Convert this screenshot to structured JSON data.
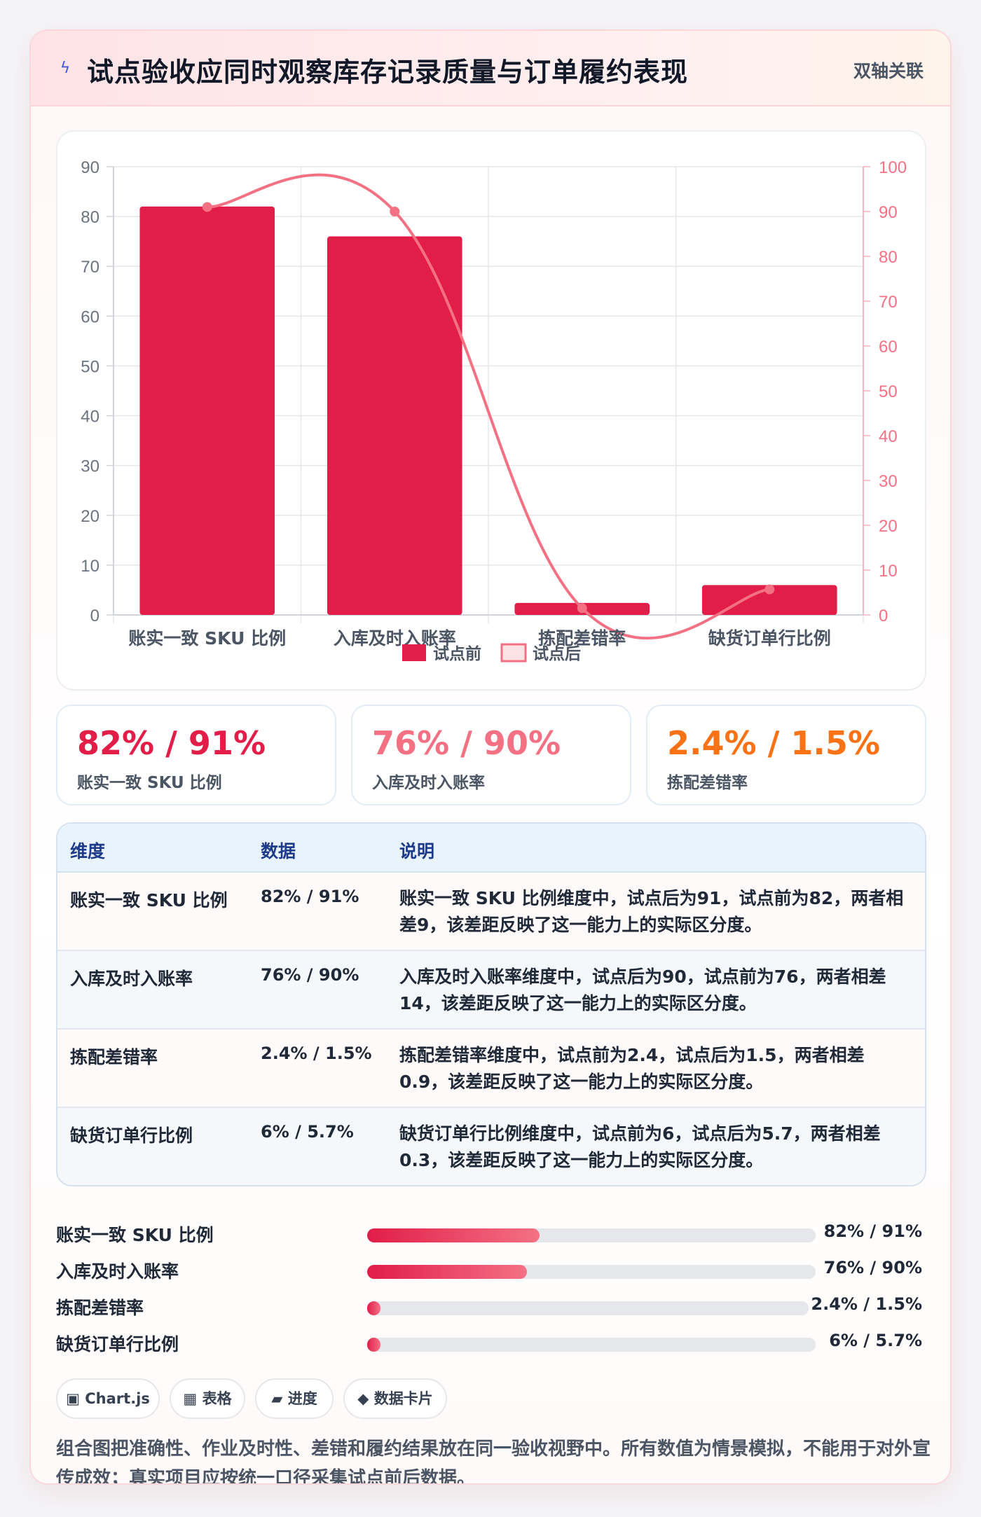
{
  "header": {
    "title": "试点验收应同时观察库存记录质量与订单履约表现",
    "tag": "双轴关联",
    "icon": "bolt-icon"
  },
  "chart_data": {
    "type": "bar",
    "categories": [
      "账实一致 SKU 比例",
      "入库及时入账率",
      "拣配差错率",
      "缺货订单行比例"
    ],
    "series": [
      {
        "name": "试点前",
        "type": "bar",
        "axis": "left",
        "values": [
          82,
          76,
          2.4,
          6
        ],
        "color": "#e11d48"
      },
      {
        "name": "试点后",
        "type": "line",
        "axis": "right",
        "values": [
          91,
          90,
          1.5,
          5.7
        ],
        "color": "#f47184"
      }
    ],
    "y_left": {
      "ticks": [
        0,
        10,
        20,
        30,
        40,
        50,
        60,
        70,
        80,
        90
      ],
      "range": [
        0,
        90
      ]
    },
    "y_right": {
      "ticks": [
        0,
        10,
        20,
        30,
        40,
        50,
        60,
        70,
        80,
        90,
        100
      ],
      "range": [
        0,
        100
      ]
    },
    "legend_position": "bottom",
    "grid": true
  },
  "stats": [
    {
      "value": "82% / 91%",
      "label": "账实一致 SKU 比例",
      "color": "#e11d48"
    },
    {
      "value": "76% / 90%",
      "label": "入库及时入账率",
      "color": "#f47184"
    },
    {
      "value": "2.4% / 1.5%",
      "label": "拣配差错率",
      "color": "#f97316"
    }
  ],
  "table": {
    "headers": [
      "维度",
      "数据",
      "说明"
    ],
    "rows": [
      {
        "dim": "账实一致 SKU 比例",
        "val": "82% / 91%",
        "desc": "账实一致 SKU 比例维度中，试点后为91，试点前为82，两者相差9，该差距反映了这一能力上的实际区分度。"
      },
      {
        "dim": "入库及时入账率",
        "val": "76% / 90%",
        "desc": "入库及时入账率维度中，试点后为90，试点前为76，两者相差14，该差距反映了这一能力上的实际区分度。"
      },
      {
        "dim": "拣配差错率",
        "val": "2.4% / 1.5%",
        "desc": "拣配差错率维度中，试点前为2.4，试点后为1.5，两者相差0.9，该差距反映了这一能力上的实际区分度。"
      },
      {
        "dim": "缺货订单行比例",
        "val": "6% / 5.7%",
        "desc": "缺货订单行比例维度中，试点前为6，试点后为5.7，两者相差0.3，该差距反映了这一能力上的实际区分度。"
      }
    ]
  },
  "progress": [
    {
      "label": "账实一致 SKU 比例",
      "value": "82% / 91%",
      "fill_fraction": 0.385
    },
    {
      "label": "入库及时入账率",
      "value": "76% / 90%",
      "fill_fraction": 0.357
    },
    {
      "label": "拣配差错率",
      "value": "2.4% / 1.5%",
      "fill_fraction": 0.03
    },
    {
      "label": "缺货订单行比例",
      "value": "6% / 5.7%",
      "fill_fraction": 0.03
    }
  ],
  "chips": [
    {
      "icon": "chart-icon",
      "glyph": "▣",
      "label": "Chart.js"
    },
    {
      "icon": "table-icon",
      "glyph": "▦",
      "label": "表格"
    },
    {
      "icon": "progress-icon",
      "glyph": "▰",
      "label": "进度"
    },
    {
      "icon": "diamond-icon",
      "glyph": "◆",
      "label": "数据卡片"
    }
  ],
  "note": "组合图把准确性、作业及时性、差错和履约结果放在同一验收视野中。所有数值为情景模拟，不能用于对外宣传成效；真实项目应按统一口径采集试点前后数据。"
}
